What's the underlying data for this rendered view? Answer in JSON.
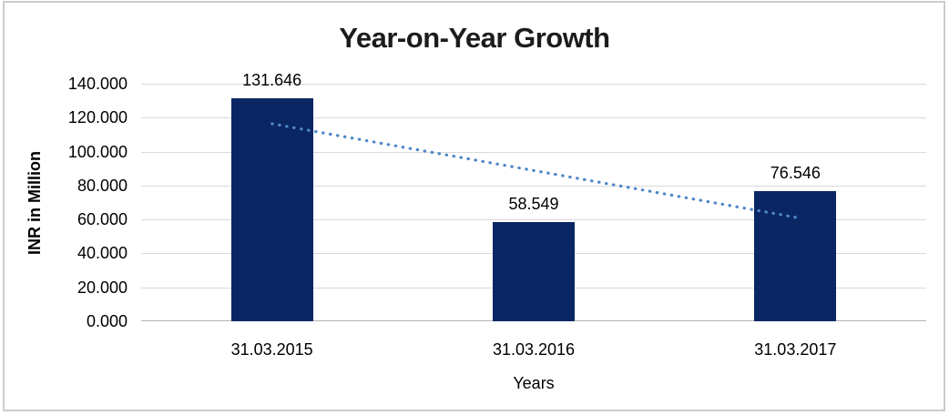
{
  "window": {
    "background": "#ffffff",
    "border_color": "#cccccc"
  },
  "chart_data": {
    "type": "bar",
    "title": "Year-on-Year Growth",
    "categories": [
      "31.03.2015",
      "31.03.2016",
      "31.03.2017"
    ],
    "values": [
      131.646,
      58.549,
      76.546
    ],
    "data_labels": [
      "131.646",
      "58.549",
      "76.546"
    ],
    "xlabel": "Years",
    "ylabel": "INR in Million",
    "ylim": [
      0,
      140
    ],
    "ytick_step": 20,
    "ytick_labels": [
      "0.000",
      "20.000",
      "40.000",
      "60.000",
      "80.000",
      "100.000",
      "120.000",
      "140.000"
    ],
    "grid": true,
    "legend": false,
    "bar_color": "#0a2663",
    "gridline_color": "#d9d9d9",
    "axis_line_color": "#b3b3b3",
    "label_color": "#000000",
    "title_color": "#1c1c1c",
    "trendline": {
      "type": "linear",
      "style": "dotted",
      "color": "#4f87c8",
      "start_value": 116.4,
      "end_value": 61.3
    }
  }
}
